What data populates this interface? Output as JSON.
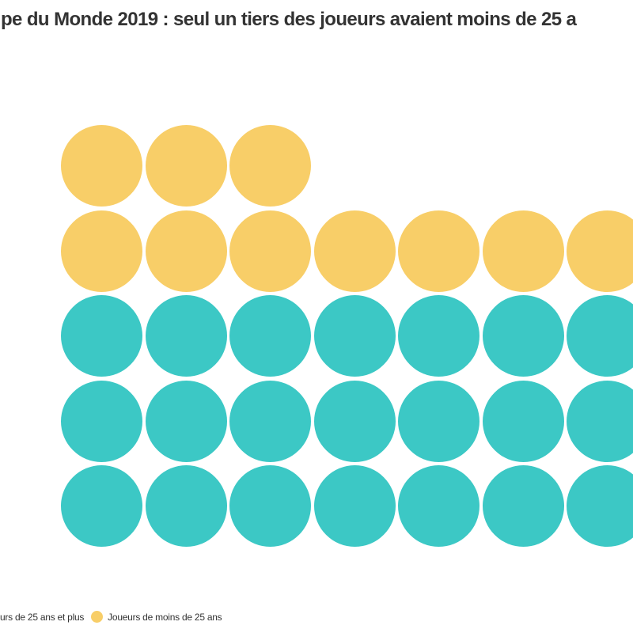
{
  "title": {
    "visible_text": "pe du Monde 2019 : seul un tiers des joueurs avaient moins de 25 a"
  },
  "legend": {
    "items": [
      {
        "visible_label": "urs de 25 ans et plus",
        "series": "over25",
        "dot_visible": false
      },
      {
        "visible_label": "Joueurs de moins de 25 ans",
        "series": "under25",
        "dot_visible": true
      }
    ]
  },
  "colors": {
    "under25": "#F8CE68",
    "over25": "#3CC8C5",
    "title_text": "#333333",
    "legend_text": "#333333",
    "background": "#FFFFFF"
  },
  "chart_data": {
    "type": "waffle",
    "title": "pe du Monde 2019 : seul un tiers des joueurs avaient moins de 25 a",
    "legend_entries": [
      "urs de 25 ans et plus",
      "Joueurs de moins de 25 ans"
    ],
    "series": [
      {
        "key": "under25",
        "name": "Joueurs de moins de 25 ans",
        "color": "#F8CE68",
        "visible_dots": 10
      },
      {
        "key": "over25",
        "name": "urs de 25 ans et plus",
        "color": "#3CC8C5",
        "visible_dots": 21
      }
    ],
    "grid_rows": [
      {
        "series": "under25",
        "count": 3
      },
      {
        "series": "under25",
        "count": 7
      },
      {
        "series": "over25",
        "count": 7
      },
      {
        "series": "over25",
        "count": 7
      },
      {
        "series": "over25",
        "count": 7
      }
    ],
    "visible_columns": 7,
    "visible_rows": 5,
    "note": "image is a crop: title, legend left item and rightmost dot column are cut off at the frame edges"
  }
}
